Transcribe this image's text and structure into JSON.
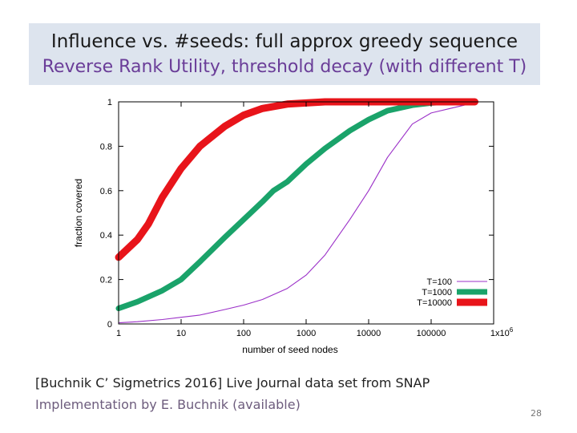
{
  "slide": {
    "title_line1": "Influence vs. #seeds: full approx greedy sequence",
    "title_line2": "Reverse Rank Utility, threshold decay (with different T)",
    "footer_line1": "[Buchnik C’ Sigmetrics 2016]  Live Journal data set from SNAP",
    "footer_line2": "Implementation by E. Buchnik (available)",
    "page_number": "28"
  },
  "chart_data": {
    "type": "line",
    "xlabel": "number of seed nodes",
    "ylabel": "fraction covered",
    "xscale": "log",
    "xlim": [
      1,
      1000000
    ],
    "ylim": [
      0,
      1
    ],
    "x_ticks": [
      1,
      10,
      100,
      1000,
      10000,
      100000,
      1000000
    ],
    "x_tick_labels": [
      "1",
      "10",
      "100",
      "1000",
      "10000",
      "100000",
      "1x10"
    ],
    "x_tick_last_exponent": "6",
    "y_ticks": [
      0,
      0.2,
      0.4,
      0.6,
      0.8,
      1
    ],
    "y_tick_labels": [
      "0",
      "0.2",
      "0.4",
      "0.6",
      "0.8",
      "1"
    ],
    "grid": false,
    "legend_position": "bottom-right",
    "series": [
      {
        "name": "T=100",
        "color": "#9b30c8",
        "style": "thin",
        "x": [
          1,
          2,
          5,
          10,
          20,
          50,
          100,
          200,
          500,
          1000,
          2000,
          5000,
          10000,
          20000,
          50000,
          100000,
          200000,
          400000,
          500000
        ],
        "y": [
          0.005,
          0.01,
          0.02,
          0.03,
          0.04,
          0.065,
          0.085,
          0.11,
          0.16,
          0.22,
          0.31,
          0.47,
          0.6,
          0.75,
          0.9,
          0.95,
          0.97,
          0.99,
          1.0
        ]
      },
      {
        "name": "T=1000",
        "color": "#1aa36a",
        "style": "medium",
        "x": [
          1,
          2,
          5,
          10,
          20,
          50,
          100,
          200,
          300,
          500,
          1000,
          2000,
          5000,
          10000,
          20000,
          50000,
          100000,
          200000,
          500000
        ],
        "y": [
          0.07,
          0.1,
          0.15,
          0.2,
          0.28,
          0.39,
          0.47,
          0.55,
          0.6,
          0.64,
          0.72,
          0.79,
          0.87,
          0.92,
          0.96,
          0.985,
          0.995,
          1.0,
          1.0
        ]
      },
      {
        "name": "T=10000",
        "color": "#e8141a",
        "style": "thick",
        "x": [
          1,
          2,
          3,
          5,
          10,
          20,
          50,
          100,
          200,
          500,
          1000,
          2000,
          5000,
          10000,
          100000,
          500000
        ],
        "y": [
          0.3,
          0.38,
          0.45,
          0.57,
          0.7,
          0.8,
          0.89,
          0.94,
          0.97,
          0.99,
          0.995,
          1.0,
          1.0,
          1.0,
          1.0,
          1.0
        ]
      }
    ]
  }
}
